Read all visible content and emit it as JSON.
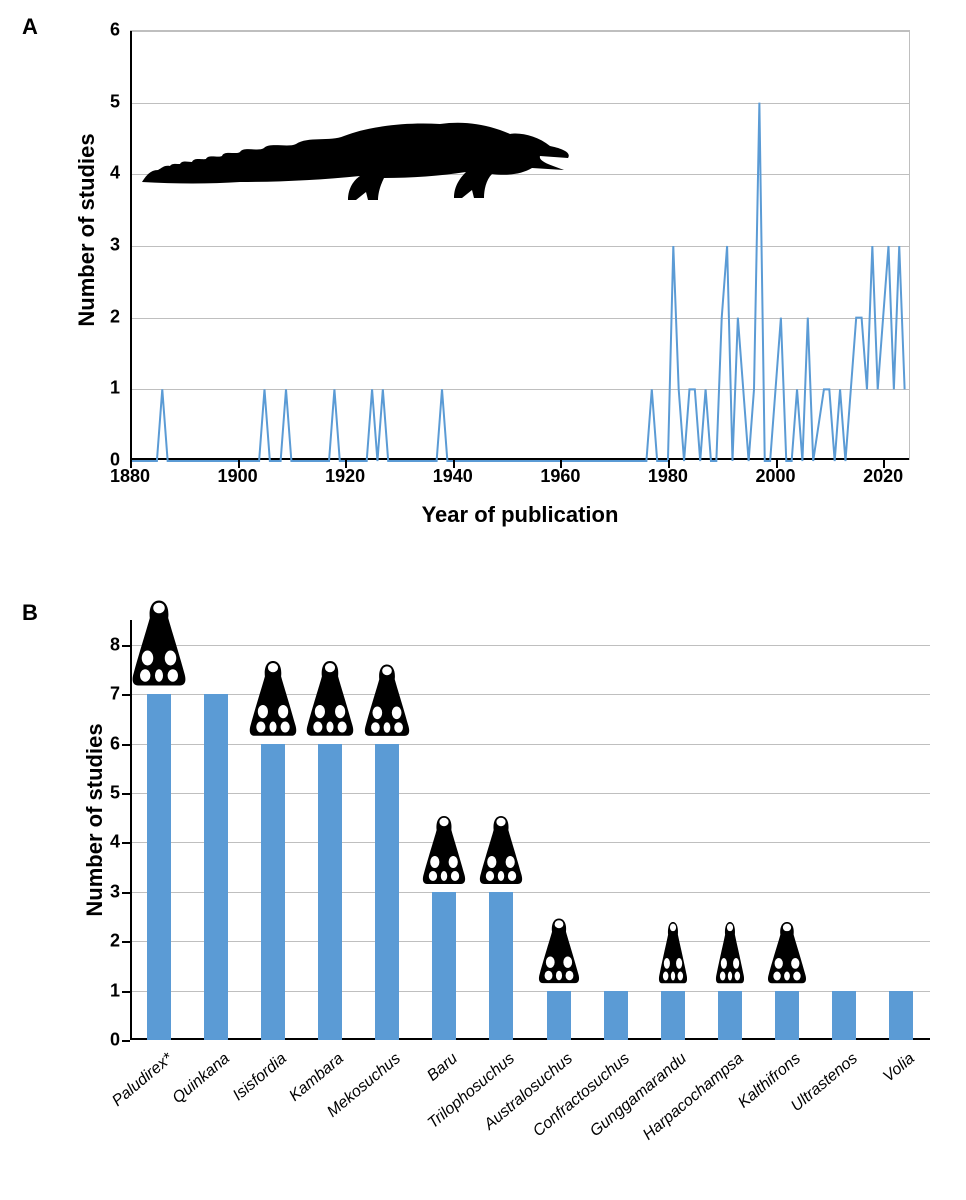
{
  "panel_labels": {
    "A": "A",
    "B": "B"
  },
  "chartA": {
    "type": "line",
    "xlabel": "Year of publication",
    "ylabel": "Number of studies",
    "title_fontsize": 22,
    "label_fontsize": 22,
    "tick_fontsize": 18,
    "xlim": [
      1880,
      2025
    ],
    "ylim": [
      0,
      6
    ],
    "xtick_step": 20,
    "ytick_step": 1,
    "xticks": [
      1880,
      1900,
      1920,
      1940,
      1960,
      1980,
      2000,
      2020
    ],
    "yticks": [
      0,
      1,
      2,
      3,
      4,
      5,
      6
    ],
    "line_color": "#5b9bd5",
    "line_width": 2,
    "grid_color": "#bfbfbf",
    "axis_color": "#000000",
    "background_color": "#ffffff",
    "series": [
      {
        "x": 1880,
        "y": 0
      },
      {
        "x": 1885,
        "y": 0
      },
      {
        "x": 1886,
        "y": 1
      },
      {
        "x": 1887,
        "y": 0
      },
      {
        "x": 1904,
        "y": 0
      },
      {
        "x": 1905,
        "y": 1
      },
      {
        "x": 1906,
        "y": 0
      },
      {
        "x": 1908,
        "y": 0
      },
      {
        "x": 1909,
        "y": 1
      },
      {
        "x": 1910,
        "y": 0
      },
      {
        "x": 1917,
        "y": 0
      },
      {
        "x": 1918,
        "y": 1
      },
      {
        "x": 1919,
        "y": 0
      },
      {
        "x": 1924,
        "y": 0
      },
      {
        "x": 1925,
        "y": 1
      },
      {
        "x": 1926,
        "y": 0
      },
      {
        "x": 1927,
        "y": 1
      },
      {
        "x": 1928,
        "y": 0
      },
      {
        "x": 1937,
        "y": 0
      },
      {
        "x": 1938,
        "y": 1
      },
      {
        "x": 1939,
        "y": 0
      },
      {
        "x": 1976,
        "y": 0
      },
      {
        "x": 1977,
        "y": 1
      },
      {
        "x": 1978,
        "y": 0
      },
      {
        "x": 1980,
        "y": 0
      },
      {
        "x": 1981,
        "y": 3
      },
      {
        "x": 1982,
        "y": 1
      },
      {
        "x": 1983,
        "y": 0
      },
      {
        "x": 1984,
        "y": 1
      },
      {
        "x": 1985,
        "y": 1
      },
      {
        "x": 1986,
        "y": 0
      },
      {
        "x": 1987,
        "y": 1
      },
      {
        "x": 1988,
        "y": 0
      },
      {
        "x": 1989,
        "y": 0
      },
      {
        "x": 1990,
        "y": 2
      },
      {
        "x": 1991,
        "y": 3
      },
      {
        "x": 1992,
        "y": 0
      },
      {
        "x": 1993,
        "y": 2
      },
      {
        "x": 1994,
        "y": 1
      },
      {
        "x": 1995,
        "y": 0
      },
      {
        "x": 1996,
        "y": 1
      },
      {
        "x": 1997,
        "y": 5
      },
      {
        "x": 1998,
        "y": 0
      },
      {
        "x": 1999,
        "y": 0
      },
      {
        "x": 2000,
        "y": 1
      },
      {
        "x": 2001,
        "y": 2
      },
      {
        "x": 2002,
        "y": 0
      },
      {
        "x": 2003,
        "y": 0
      },
      {
        "x": 2004,
        "y": 1
      },
      {
        "x": 2005,
        "y": 0
      },
      {
        "x": 2006,
        "y": 2
      },
      {
        "x": 2007,
        "y": 0
      },
      {
        "x": 2009,
        "y": 1
      },
      {
        "x": 2010,
        "y": 1
      },
      {
        "x": 2011,
        "y": 0
      },
      {
        "x": 2012,
        "y": 1
      },
      {
        "x": 2013,
        "y": 0
      },
      {
        "x": 2014,
        "y": 1
      },
      {
        "x": 2015,
        "y": 2
      },
      {
        "x": 2016,
        "y": 2
      },
      {
        "x": 2017,
        "y": 1
      },
      {
        "x": 2018,
        "y": 3
      },
      {
        "x": 2019,
        "y": 1
      },
      {
        "x": 2020,
        "y": 2
      },
      {
        "x": 2021,
        "y": 3
      },
      {
        "x": 2022,
        "y": 1
      },
      {
        "x": 2023,
        "y": 3
      },
      {
        "x": 2024,
        "y": 1
      }
    ],
    "silhouette": "crocodile"
  },
  "chartB": {
    "type": "bar",
    "xlabel": "",
    "ylabel": "Number of studies",
    "ylim": [
      0,
      8.5
    ],
    "yticks": [
      0,
      1,
      2,
      3,
      4,
      5,
      6,
      7,
      8
    ],
    "ytick_step": 1,
    "bar_color": "#5b9bd5",
    "bar_width_ratio": 0.42,
    "grid_color": "#bfbfbf",
    "axis_color": "#000000",
    "background_color": "#ffffff",
    "tick_fontsize": 18,
    "label_fontsize": 22,
    "xlabel_fontstyle": "italic",
    "xlabel_rotation_deg": -40,
    "categories": [
      {
        "label": "Paludirex*",
        "value": 7,
        "skull": true,
        "skull_scale": 1.25
      },
      {
        "label": "Quinkana",
        "value": 7,
        "skull": false
      },
      {
        "label": "Isisfordia",
        "value": 6,
        "skull": true,
        "skull_scale": 1.1
      },
      {
        "label": "Kambara",
        "value": 6,
        "skull": true,
        "skull_scale": 1.1
      },
      {
        "label": "Mekosuchus",
        "value": 6,
        "skull": true,
        "skull_scale": 1.05
      },
      {
        "label": "Baru",
        "value": 3,
        "skull": true,
        "skull_scale": 1.0
      },
      {
        "label": "Trilophosuchus",
        "value": 3,
        "skull": true,
        "skull_scale": 1.0
      },
      {
        "label": "Australosuchus",
        "value": 1,
        "skull": true,
        "skull_scale": 0.95
      },
      {
        "label": "Confractosuchus",
        "value": 1,
        "skull": false
      },
      {
        "label": "Gunggamarandu",
        "value": 1,
        "skull": true,
        "skull_scale": 0.9,
        "narrow": true
      },
      {
        "label": "Harpacochampsa",
        "value": 1,
        "skull": true,
        "skull_scale": 0.9,
        "narrow": true
      },
      {
        "label": "Kalthifrons",
        "value": 1,
        "skull": true,
        "skull_scale": 0.9
      },
      {
        "label": "Ultrastenos",
        "value": 1,
        "skull": false
      },
      {
        "label": "Volia",
        "value": 1,
        "skull": false
      }
    ]
  }
}
